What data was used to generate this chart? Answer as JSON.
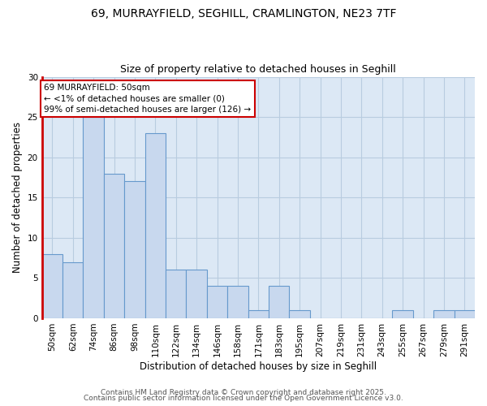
{
  "title_line1": "69, MURRAYFIELD, SEGHILL, CRAMLINGTON, NE23 7TF",
  "title_line2": "Size of property relative to detached houses in Seghill",
  "xlabel": "Distribution of detached houses by size in Seghill",
  "ylabel": "Number of detached properties",
  "bins": [
    "50sqm",
    "62sqm",
    "74sqm",
    "86sqm",
    "98sqm",
    "110sqm",
    "122sqm",
    "134sqm",
    "146sqm",
    "158sqm",
    "171sqm",
    "183sqm",
    "195sqm",
    "207sqm",
    "219sqm",
    "231sqm",
    "243sqm",
    "255sqm",
    "267sqm",
    "279sqm",
    "291sqm"
  ],
  "values": [
    8,
    7,
    25,
    18,
    17,
    23,
    6,
    6,
    4,
    4,
    1,
    4,
    1,
    0,
    0,
    0,
    0,
    1,
    0,
    1,
    1
  ],
  "bar_color": "#c8d8ee",
  "bar_edge_color": "#6699cc",
  "fig_bg_color": "#ffffff",
  "ax_bg_color": "#dce8f5",
  "annotation_text": "69 MURRAYFIELD: 50sqm\n← <1% of detached houses are smaller (0)\n99% of semi-detached houses are larger (126) →",
  "annotation_box_color": "#ffffff",
  "annotation_box_edge": "#cc0000",
  "footer_line1": "Contains HM Land Registry data © Crown copyright and database right 2025.",
  "footer_line2": "Contains public sector information licensed under the Open Government Licence v3.0.",
  "ylim": [
    0,
    30
  ],
  "yticks": [
    0,
    5,
    10,
    15,
    20,
    25,
    30
  ],
  "left_spine_color": "#cc0000",
  "grid_color": "#b8cce0",
  "title1_fontsize": 10,
  "title2_fontsize": 9,
  "tick_fontsize": 7.5,
  "label_fontsize": 8.5,
  "footer_fontsize": 6.5
}
